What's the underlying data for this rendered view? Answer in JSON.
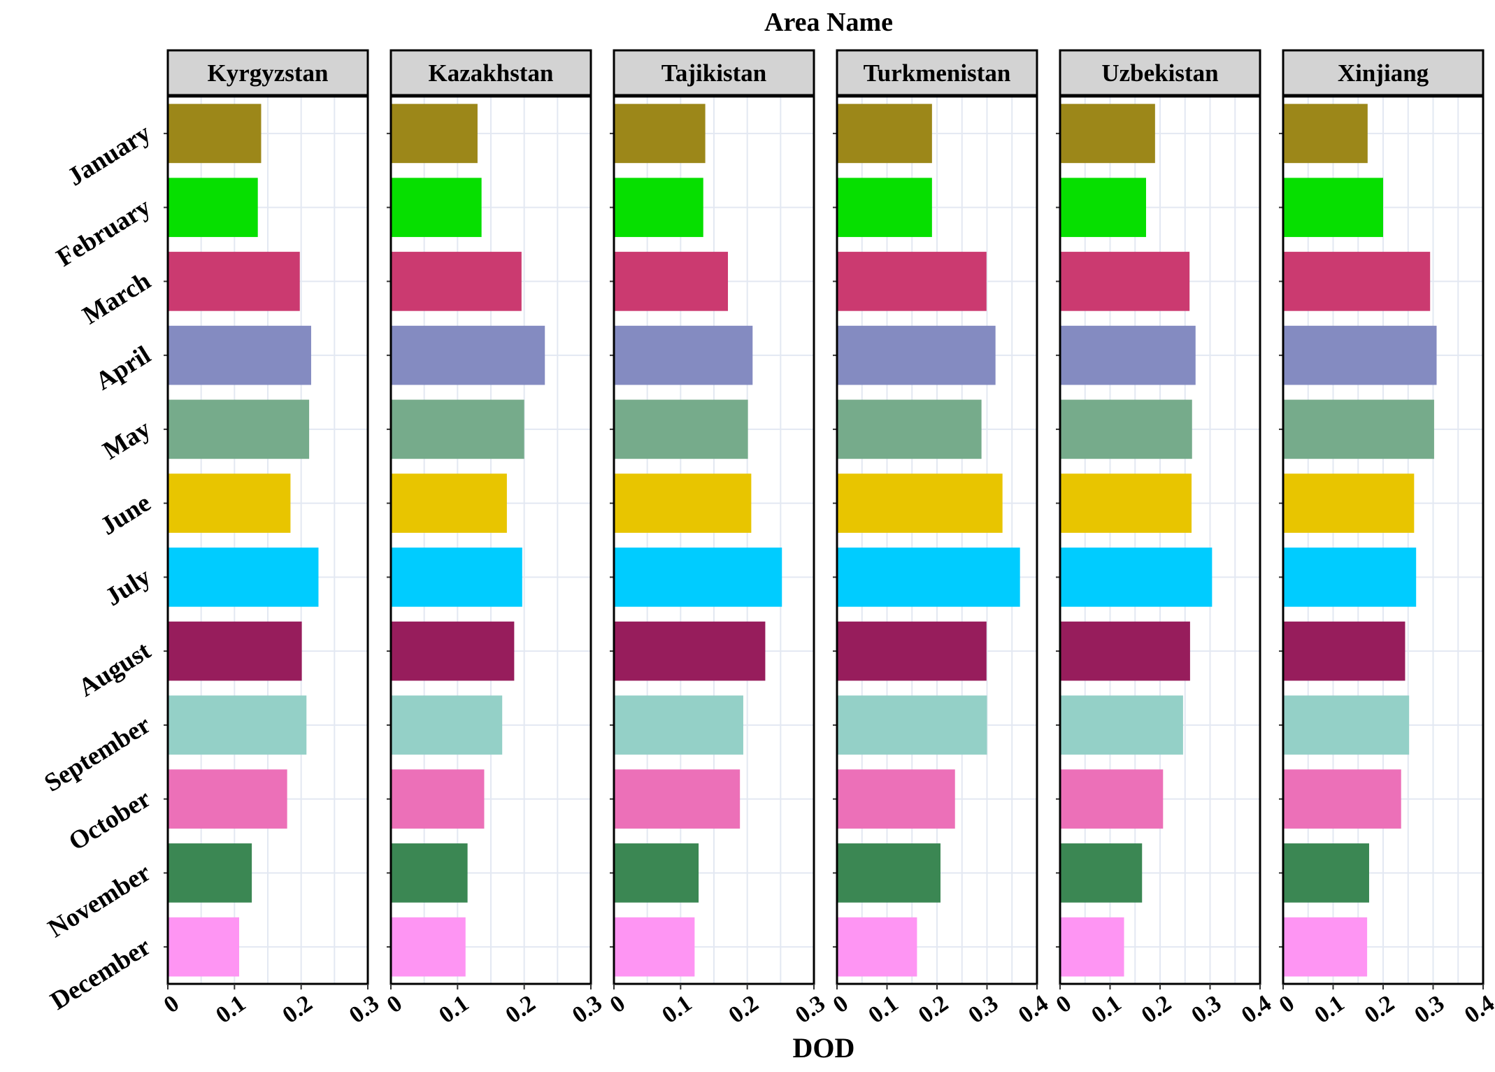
{
  "chart_data": {
    "type": "bar",
    "orientation": "horizontal",
    "title": "Area Name",
    "xlabel": "DOD",
    "ylabel": "",
    "categories": [
      "January",
      "February",
      "March",
      "April",
      "May",
      "June",
      "July",
      "August",
      "September",
      "October",
      "November",
      "December"
    ],
    "colors": [
      "#9c8719",
      "#06df00",
      "#cb3a70",
      "#848bc1",
      "#76ab8b",
      "#e8c500",
      "#00ccff",
      "#971d5c",
      "#94d0c7",
      "#ec70b8",
      "#3b8753",
      "#fe95f3"
    ],
    "grid": true,
    "panels": [
      {
        "name": "Kyrgyzstan",
        "xlim": [
          0,
          0.3
        ],
        "ticks": [
          "0",
          "0.1",
          "0.2",
          "0.3"
        ],
        "values": [
          0.14,
          0.135,
          0.198,
          0.215,
          0.212,
          0.184,
          0.226,
          0.201,
          0.208,
          0.179,
          0.126,
          0.107
        ]
      },
      {
        "name": "Kazakhstan",
        "xlim": [
          0,
          0.3
        ],
        "ticks": [
          "0",
          "0.1",
          "0.2",
          "0.3"
        ],
        "values": [
          0.13,
          0.136,
          0.196,
          0.231,
          0.2,
          0.174,
          0.197,
          0.185,
          0.167,
          0.14,
          0.115,
          0.112
        ]
      },
      {
        "name": "Tajikistan",
        "xlim": [
          0,
          0.3
        ],
        "ticks": [
          "0",
          "0.1",
          "0.2",
          "0.3"
        ],
        "values": [
          0.137,
          0.134,
          0.171,
          0.208,
          0.201,
          0.206,
          0.252,
          0.227,
          0.194,
          0.189,
          0.127,
          0.121
        ]
      },
      {
        "name": "Turkmenistan",
        "xlim": [
          0,
          0.4
        ],
        "ticks": [
          "0",
          "0.1",
          "0.2",
          "0.3",
          "0.4"
        ],
        "values": [
          0.19,
          0.19,
          0.299,
          0.317,
          0.289,
          0.331,
          0.366,
          0.299,
          0.3,
          0.236,
          0.207,
          0.16
        ]
      },
      {
        "name": "Uzbekistan",
        "xlim": [
          0,
          0.4
        ],
        "ticks": [
          "0",
          "0.1",
          "0.2",
          "0.3",
          "0.4"
        ],
        "values": [
          0.19,
          0.172,
          0.259,
          0.271,
          0.264,
          0.263,
          0.304,
          0.26,
          0.246,
          0.206,
          0.164,
          0.128
        ]
      },
      {
        "name": "Xinjiang",
        "xlim": [
          0,
          0.4
        ],
        "ticks": [
          "0",
          "0.1",
          "0.2",
          "0.3",
          "0.4"
        ],
        "values": [
          0.169,
          0.2,
          0.294,
          0.307,
          0.302,
          0.262,
          0.266,
          0.244,
          0.252,
          0.236,
          0.172,
          0.168
        ]
      }
    ]
  }
}
